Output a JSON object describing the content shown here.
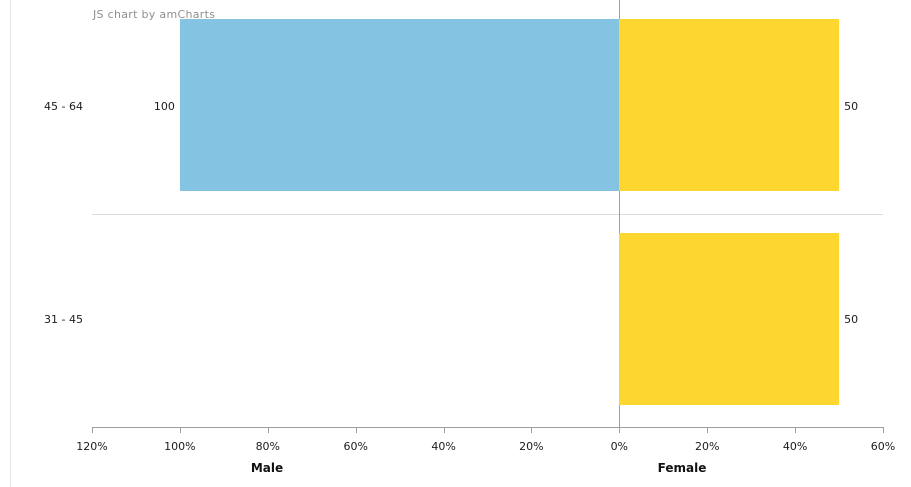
{
  "watermark": "JS chart by amCharts",
  "palette": {
    "male_bar": "#85C3E3",
    "female_bar": "#FDD630",
    "zero_line": "#9e9e9e",
    "separator_line": "#dcdcdc",
    "axis_line": "#a0a0a0",
    "tick_color": "#a0a0a0",
    "label_text": "#1c1c1c",
    "watermark_text": "#8f8f8f",
    "page_edge_line": "#e5e5e5",
    "background": "#ffffff"
  },
  "chart_data": {
    "type": "bar",
    "variant": "population-pyramid-horizontal",
    "title": "",
    "categories": [
      "45 - 64",
      "31 - 45"
    ],
    "series": [
      {
        "name": "Male",
        "axis_side": "left",
        "values": [
          100,
          0
        ]
      },
      {
        "name": "Female",
        "axis_side": "right",
        "values": [
          50,
          50
        ]
      }
    ],
    "value_labels": [
      [
        "100",
        "50"
      ],
      [
        null,
        "50"
      ]
    ],
    "x_axis": {
      "range_percent": [
        -120,
        60
      ],
      "tick_step": 20,
      "tick_labels": [
        "120%",
        "100%",
        "80%",
        "60%",
        "40%",
        "20%",
        "0%",
        "20%",
        "40%",
        "60%"
      ],
      "titles": [
        {
          "text": "Male"
        },
        {
          "text": "Female"
        }
      ]
    },
    "grid": {
      "zero_line": true,
      "category_separators": true,
      "value_gridlines": false
    },
    "legend": false
  }
}
